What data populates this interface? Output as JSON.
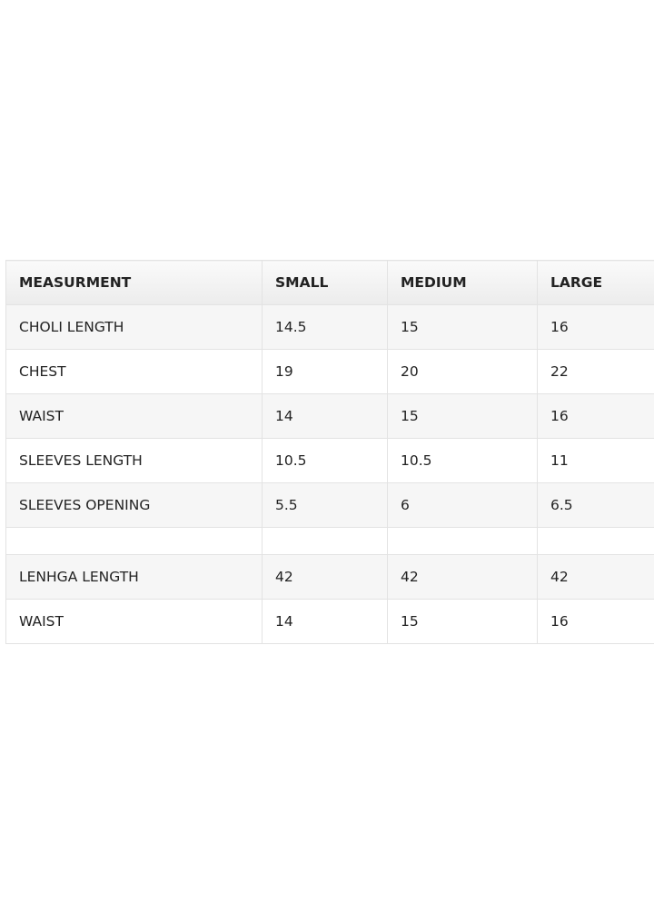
{
  "table": {
    "header": [
      "MEASURMENT",
      "SMALL",
      "MEDIUM",
      "LARGE"
    ],
    "sections": [
      {
        "rows": [
          [
            "CHOLI LENGTH",
            "14.5",
            "15",
            "16"
          ],
          [
            "CHEST",
            "19",
            "20",
            "22"
          ],
          [
            "WAIST",
            "14",
            "15",
            "16"
          ],
          [
            "SLEEVES LENGTH",
            "10.5",
            "10.5",
            "11"
          ],
          [
            "SLEEVES OPENING",
            "5.5",
            "6",
            "6.5"
          ]
        ]
      },
      {
        "rows": [
          [
            "LENHGA LENGTH",
            "42",
            "42",
            "42"
          ],
          [
            "WAIST",
            "14",
            "15",
            "16"
          ]
        ]
      }
    ]
  }
}
